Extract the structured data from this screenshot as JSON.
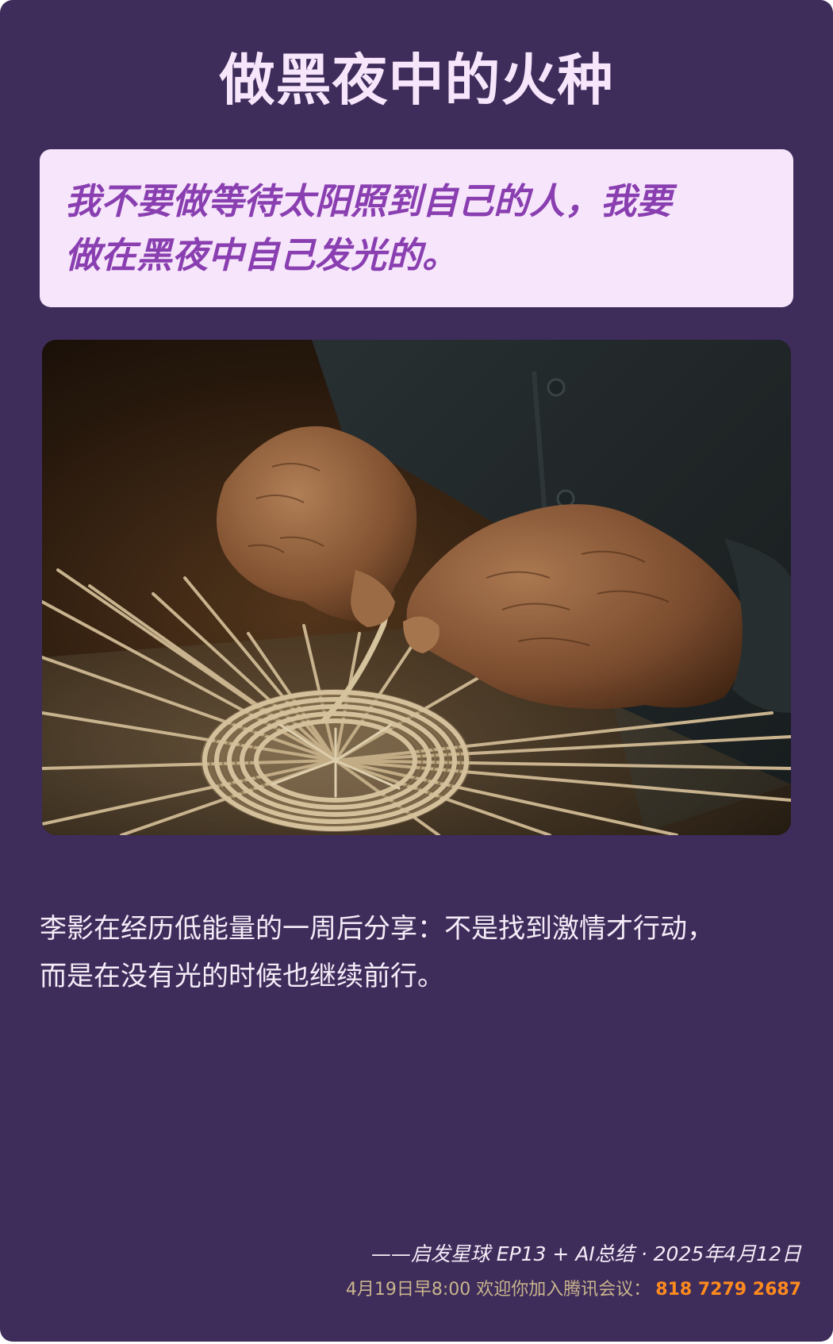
{
  "title": "做黑夜中的火种",
  "quote": {
    "line1": "我不要做等待太阳照到自己的人，我要",
    "line2": "做在黑夜中自己发光的。"
  },
  "photo": {
    "subject": "hands-weaving-bamboo-basket"
  },
  "body": {
    "line1": "李影在经历低能量的一周后分享：不是找到激情才行动，",
    "line2": "而是在没有光的时候也继续前行。"
  },
  "credit": "——启发星球 EP13 + AI总结 · 2025年4月12日",
  "meeting": {
    "label": "4月19日早8:00 欢迎你加入腾讯会议：",
    "id": "818 7279 2687"
  },
  "colors": {
    "background": "#3e2c5b",
    "quote_box": "#f7e6fb",
    "quote_text": "#8a3fb1",
    "title_text": "#f7e6fb",
    "meeting_label": "#c9b58c",
    "meeting_id": "#ff8a1e"
  }
}
